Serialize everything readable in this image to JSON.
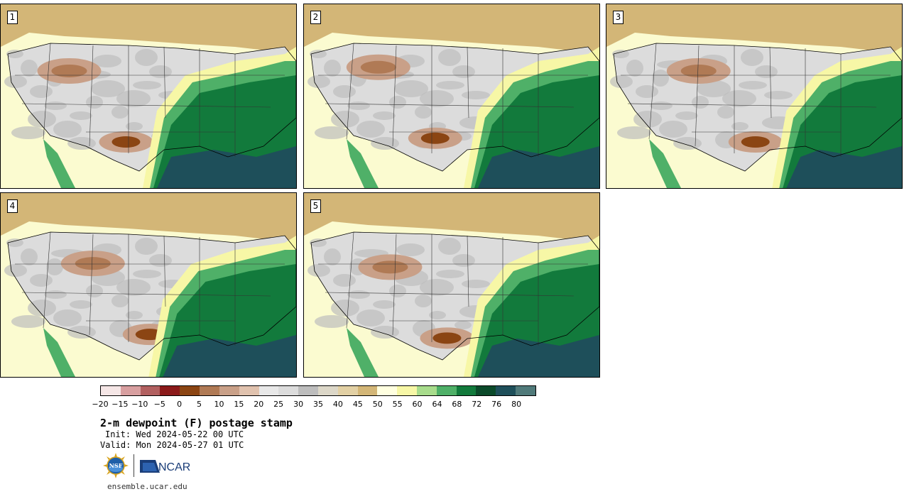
{
  "panels": [
    {
      "label": "1",
      "moist_shift": 0.0,
      "dry_cx": 0.28,
      "dry_cy": 0.44
    },
    {
      "label": "2",
      "moist_shift": 0.06,
      "dry_cx": 0.3,
      "dry_cy": 0.42
    },
    {
      "label": "3",
      "moist_shift": 0.08,
      "dry_cx": 0.36,
      "dry_cy": 0.44
    },
    {
      "label": "4",
      "moist_shift": 0.02,
      "dry_cx": 0.36,
      "dry_cy": 0.46
    },
    {
      "label": "5",
      "moist_shift": 0.06,
      "dry_cx": 0.34,
      "dry_cy": 0.48
    }
  ],
  "colorbar": {
    "colors": [
      "#f5e6e6",
      "#d89fa0",
      "#b26060",
      "#8b1a1a",
      "#8b4513",
      "#b07a55",
      "#c9a088",
      "#e0c2ae",
      "#e8e8e8",
      "#dcdcdc",
      "#bdbdbd",
      "#dcd7c8",
      "#e2d0a4",
      "#d3b677",
      "#ffffe0",
      "#f7f7a6",
      "#a8dc8c",
      "#4fb068",
      "#127a3c",
      "#0b4a2a",
      "#1e4f5a",
      "#507a7a"
    ],
    "ticks": [
      "−20",
      "−15",
      "−10",
      "−5",
      "0",
      "5",
      "10",
      "15",
      "20",
      "25",
      "30",
      "35",
      "40",
      "45",
      "50",
      "55",
      "60",
      "64",
      "68",
      "72",
      "76",
      "80"
    ]
  },
  "title": "2-m dewpoint (F) postage stamp",
  "init": "Init: Wed 2024-05-22 00 UTC",
  "valid": "Valid: Mon 2024-05-27 01 UTC",
  "logos": {
    "nsf": "NSF",
    "ncar": "NCAR"
  },
  "footer": "ensemble.ucar.edu"
}
